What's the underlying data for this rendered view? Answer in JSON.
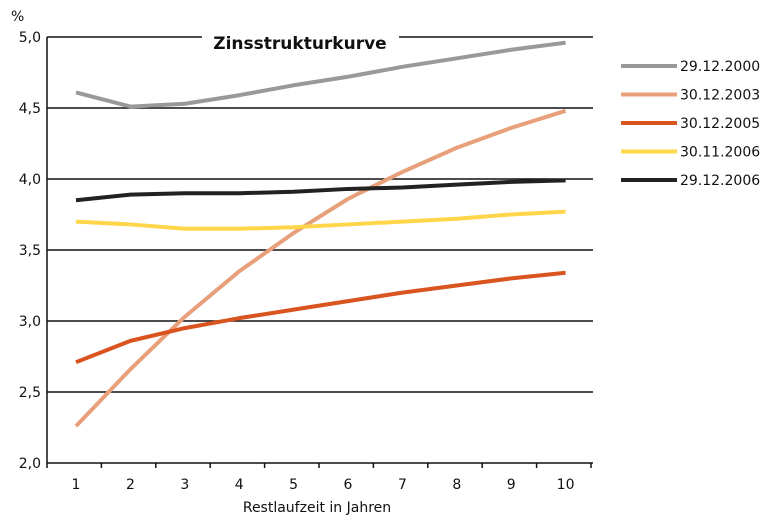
{
  "chart_data": {
    "type": "line",
    "title": "Zinsstrukturkurve",
    "xlabel": "Restlaufzeit in Jahren",
    "ylabel": "%",
    "x": [
      1,
      2,
      3,
      4,
      5,
      6,
      7,
      8,
      9,
      10
    ],
    "x_tick_labels": [
      "1",
      "2",
      "3",
      "4",
      "5",
      "6",
      "7",
      "8",
      "9",
      "10"
    ],
    "ylim": [
      2.0,
      5.0
    ],
    "y_ticks": [
      2.0,
      2.5,
      3.0,
      3.5,
      4.0,
      4.5,
      5.0
    ],
    "y_tick_labels": [
      "2,0",
      "2,5",
      "3,0",
      "3,5",
      "4,0",
      "4,5",
      "5,0"
    ],
    "grid": "horizontal",
    "legend_position": "right",
    "series": [
      {
        "name": "29.12.2000",
        "color": "#999999",
        "values": [
          4.61,
          4.51,
          4.53,
          4.59,
          4.66,
          4.72,
          4.79,
          4.85,
          4.91,
          4.96
        ]
      },
      {
        "name": "30.12.2003",
        "color": "#E8A07A",
        "values": [
          2.26,
          2.66,
          3.03,
          3.35,
          3.62,
          3.86,
          4.05,
          4.22,
          4.36,
          4.48
        ]
      },
      {
        "name": "30.12.2005",
        "color": "#D9541F",
        "values": [
          2.71,
          2.86,
          2.95,
          3.02,
          3.08,
          3.14,
          3.2,
          3.25,
          3.3,
          3.34
        ]
      },
      {
        "name": "30.11.2006",
        "color": "#FFD54A",
        "values": [
          3.7,
          3.68,
          3.65,
          3.65,
          3.66,
          3.68,
          3.7,
          3.72,
          3.75,
          3.77
        ]
      },
      {
        "name": "29.12.2006",
        "color": "#222222",
        "values": [
          3.85,
          3.89,
          3.9,
          3.9,
          3.91,
          3.93,
          3.94,
          3.96,
          3.98,
          3.99
        ]
      }
    ]
  }
}
